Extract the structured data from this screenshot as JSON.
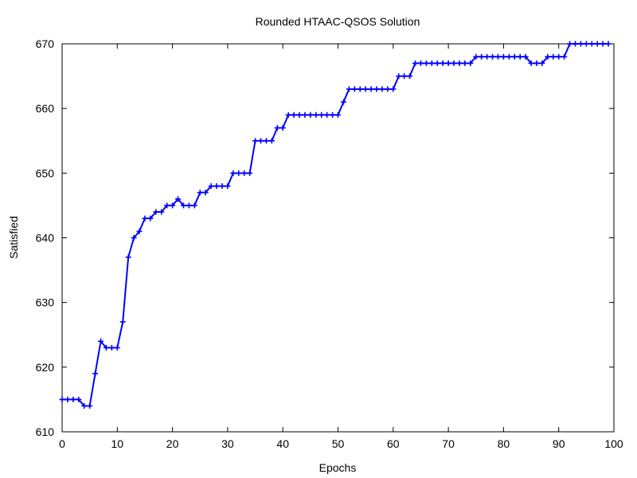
{
  "chart_data": {
    "type": "line",
    "title": "Rounded HTAAC-QSOS Solution",
    "xlabel": "Epochs",
    "ylabel": "Satisfied",
    "xlim": [
      0,
      100
    ],
    "ylim": [
      610,
      670
    ],
    "grid": false,
    "legend": "none",
    "x_ticks": [
      "0",
      "10",
      "20",
      "30",
      "40",
      "50",
      "60",
      "70",
      "80",
      "90",
      "100"
    ],
    "y_ticks": [
      "610",
      "620",
      "630",
      "640",
      "650",
      "660",
      "670"
    ],
    "series": [
      {
        "color": "#0000ff",
        "marker": "plus",
        "x": [
          0,
          1,
          2,
          3,
          4,
          5,
          6,
          7,
          8,
          9,
          10,
          11,
          12,
          13,
          14,
          15,
          16,
          17,
          18,
          19,
          20,
          21,
          22,
          23,
          24,
          25,
          26,
          27,
          28,
          29,
          30,
          31,
          32,
          33,
          34,
          35,
          36,
          37,
          38,
          39,
          40,
          41,
          42,
          43,
          44,
          45,
          46,
          47,
          48,
          49,
          50,
          51,
          52,
          53,
          54,
          55,
          56,
          57,
          58,
          59,
          60,
          61,
          62,
          63,
          64,
          65,
          66,
          67,
          68,
          69,
          70,
          71,
          72,
          73,
          74,
          75,
          76,
          77,
          78,
          79,
          80,
          81,
          82,
          83,
          84,
          85,
          86,
          87,
          88,
          89,
          90,
          91,
          92,
          93,
          94,
          95,
          96,
          97,
          98,
          99
        ],
        "values": [
          615,
          615,
          615,
          615,
          614,
          614,
          619,
          624,
          623,
          623,
          623,
          627,
          637,
          640,
          641,
          643,
          643,
          644,
          644,
          645,
          645,
          646,
          645,
          645,
          645,
          647,
          647,
          648,
          648,
          648,
          648,
          650,
          650,
          650,
          650,
          655,
          655,
          655,
          655,
          657,
          657,
          659,
          659,
          659,
          659,
          659,
          659,
          659,
          659,
          659,
          659,
          661,
          663,
          663,
          663,
          663,
          663,
          663,
          663,
          663,
          663,
          665,
          665,
          665,
          667,
          667,
          667,
          667,
          667,
          667,
          667,
          667,
          667,
          667,
          667,
          668,
          668,
          668,
          668,
          668,
          668,
          668,
          668,
          668,
          668,
          667,
          667,
          667,
          668,
          668,
          668,
          668,
          670,
          670,
          670,
          670,
          670,
          670,
          670,
          670
        ]
      }
    ]
  }
}
